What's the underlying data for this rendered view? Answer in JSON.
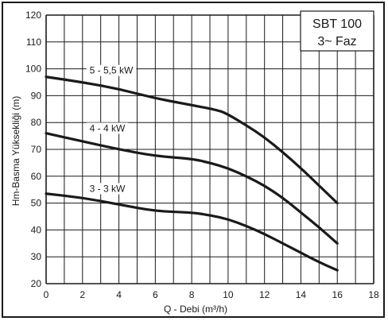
{
  "chart_data": {
    "type": "line",
    "xlabel": "Q - Debi (m³/h)",
    "ylabel": "Hm-Basma Yüksekliği (m)",
    "xlim": [
      0,
      18
    ],
    "ylim": [
      20,
      120
    ],
    "x_ticks": [
      "0",
      "2",
      "4",
      "6",
      "8",
      "10",
      "12",
      "14",
      "16",
      "18"
    ],
    "y_ticks": [
      "20",
      "30",
      "40",
      "50",
      "60",
      "70",
      "80",
      "90",
      "100",
      "110",
      "120"
    ],
    "x_minor_step": 1,
    "y_minor_step": 10,
    "grid": true,
    "legend": "none",
    "info_box": {
      "line1": "SBT 100",
      "line2": "3~ Faz",
      "placement": "top-right"
    },
    "series": [
      {
        "name": "5 - 5,5 kW",
        "points": [
          [
            0,
            97
          ],
          [
            2,
            95
          ],
          [
            4,
            92.5
          ],
          [
            6,
            89
          ],
          [
            8,
            86.5
          ],
          [
            9.5,
            84.5
          ],
          [
            10,
            83
          ],
          [
            11,
            79
          ],
          [
            12,
            74.5
          ],
          [
            13,
            69
          ],
          [
            14,
            63
          ],
          [
            15,
            56.5
          ],
          [
            16,
            50
          ]
        ]
      },
      {
        "name": "4 - 4 kW",
        "points": [
          [
            0,
            76
          ],
          [
            2,
            73
          ],
          [
            4,
            70
          ],
          [
            6,
            67.5
          ],
          [
            8,
            66.5
          ],
          [
            9,
            65
          ],
          [
            10,
            63
          ],
          [
            11,
            60
          ],
          [
            12,
            56.5
          ],
          [
            13,
            52
          ],
          [
            14,
            46.5
          ],
          [
            15,
            41
          ],
          [
            16,
            35
          ]
        ]
      },
      {
        "name": "3 - 3 kW",
        "points": [
          [
            0,
            53.5
          ],
          [
            2,
            52
          ],
          [
            4,
            49.5
          ],
          [
            6,
            47
          ],
          [
            8,
            46.5
          ],
          [
            9,
            45.5
          ],
          [
            10,
            44
          ],
          [
            11,
            41.5
          ],
          [
            12,
            38.5
          ],
          [
            13,
            35
          ],
          [
            14,
            31.5
          ],
          [
            15,
            28
          ],
          [
            16,
            25
          ]
        ]
      }
    ]
  },
  "colors": {
    "line": "#1a1a1a",
    "grid": "#1a1a1a",
    "background": "#ffffff"
  }
}
